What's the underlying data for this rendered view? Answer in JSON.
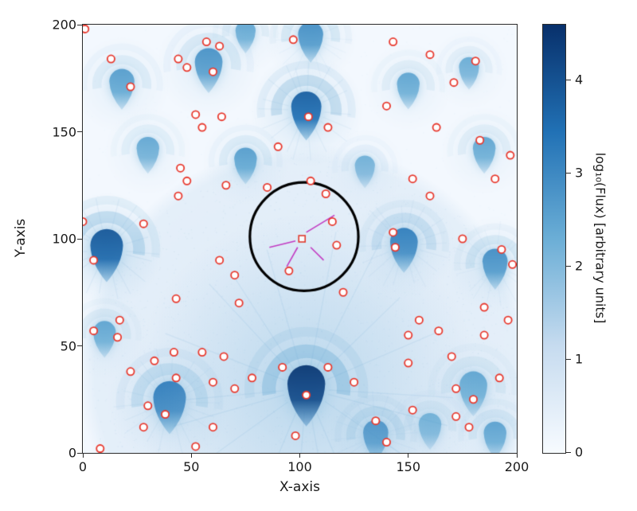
{
  "chart_data": {
    "type": "heatmap",
    "title": "",
    "xlabel": "X-axis",
    "ylabel": "Y-axis",
    "xlim": [
      0,
      200
    ],
    "ylim": [
      0,
      200
    ],
    "x_ticks": [
      0,
      50,
      100,
      150,
      200
    ],
    "y_ticks": [
      0,
      50,
      100,
      150,
      200
    ],
    "grid": false,
    "colorbar": {
      "label": "log₁₀(Flux) [arbitrary units]",
      "vmin": 0,
      "vmax": 4.6,
      "ticks": [
        0,
        1,
        2,
        3,
        4
      ],
      "colormap": "Blues",
      "colormap_stops": [
        "#f7fbff",
        "#c6dbef",
        "#6baed6",
        "#2171b5",
        "#08306b"
      ]
    },
    "big_halo": {
      "x": 103,
      "y": 38,
      "r": 105
    },
    "sources": [
      {
        "x": 103,
        "y": 30,
        "i": 1.0,
        "r": 15,
        "halo": 80
      },
      {
        "x": 103,
        "y": 160,
        "i": 0.75,
        "r": 12,
        "halo": 26
      },
      {
        "x": 11,
        "y": 95,
        "i": 0.8,
        "r": 13,
        "halo": 26
      },
      {
        "x": 148,
        "y": 97,
        "i": 0.55,
        "r": 11,
        "halo": 24
      },
      {
        "x": 40,
        "y": 24,
        "i": 0.6,
        "r": 13,
        "halo": 28
      },
      {
        "x": 190,
        "y": 88,
        "i": 0.45,
        "r": 10,
        "halo": 22
      },
      {
        "x": 58,
        "y": 181,
        "i": 0.42,
        "r": 11,
        "halo": 24
      },
      {
        "x": 18,
        "y": 172,
        "i": 0.35,
        "r": 10,
        "halo": 22
      },
      {
        "x": 105,
        "y": 194,
        "i": 0.45,
        "r": 10,
        "halo": 21
      },
      {
        "x": 75,
        "y": 136,
        "i": 0.35,
        "r": 9,
        "halo": 20
      },
      {
        "x": 30,
        "y": 141,
        "i": 0.28,
        "r": 9,
        "halo": 20
      },
      {
        "x": 185,
        "y": 141,
        "i": 0.3,
        "r": 9,
        "halo": 20
      },
      {
        "x": 150,
        "y": 171,
        "i": 0.3,
        "r": 9,
        "halo": 20
      },
      {
        "x": 178,
        "y": 179,
        "i": 0.25,
        "r": 8,
        "halo": 18
      },
      {
        "x": 135,
        "y": 8,
        "i": 0.5,
        "r": 10,
        "halo": 22
      },
      {
        "x": 180,
        "y": 30,
        "i": 0.3,
        "r": 11,
        "halo": 24
      },
      {
        "x": 10,
        "y": 55,
        "i": 0.3,
        "r": 9,
        "halo": 20
      },
      {
        "x": 75,
        "y": 196,
        "i": 0.3,
        "r": 8,
        "halo": 18
      },
      {
        "x": 190,
        "y": 8,
        "i": 0.32,
        "r": 9,
        "halo": 20
      },
      {
        "x": 160,
        "y": 12,
        "i": 0.25,
        "r": 9,
        "halo": 20
      },
      {
        "x": 130,
        "y": 133,
        "i": 0.22,
        "r": 8,
        "halo": 18
      }
    ],
    "aperture_circle": {
      "x": 102,
      "y": 101,
      "r": 25,
      "color": "#000000",
      "linewidth": 3.2
    },
    "crosshair": {
      "color": "#c23bc2",
      "segments": [
        [
          103,
          103,
          116,
          111
        ],
        [
          86,
          96,
          98,
          99
        ],
        [
          99,
          96,
          94,
          87
        ],
        [
          105,
          96,
          111,
          90
        ]
      ]
    },
    "center_marker": {
      "x": 101,
      "y": 100,
      "shape": "square",
      "color": "#e03a2e"
    },
    "detections": {
      "marker": "circle",
      "face": "#ffffff",
      "edge": "#e8392e",
      "size": 4.6,
      "points": [
        [
          1,
          198
        ],
        [
          13,
          184
        ],
        [
          44,
          184
        ],
        [
          48,
          180
        ],
        [
          57,
          192
        ],
        [
          63,
          190
        ],
        [
          97,
          193
        ],
        [
          143,
          192
        ],
        [
          160,
          186
        ],
        [
          181,
          183
        ],
        [
          22,
          171
        ],
        [
          60,
          178
        ],
        [
          52,
          158
        ],
        [
          55,
          152
        ],
        [
          64,
          157
        ],
        [
          104,
          157
        ],
        [
          113,
          152
        ],
        [
          140,
          162
        ],
        [
          163,
          152
        ],
        [
          171,
          173
        ],
        [
          183,
          146
        ],
        [
          197,
          139
        ],
        [
          190,
          128
        ],
        [
          152,
          128
        ],
        [
          160,
          120
        ],
        [
          105,
          127
        ],
        [
          112,
          121
        ],
        [
          90,
          143
        ],
        [
          45,
          133
        ],
        [
          48,
          127
        ],
        [
          44,
          120
        ],
        [
          66,
          125
        ],
        [
          85,
          124
        ],
        [
          0,
          108
        ],
        [
          28,
          107
        ],
        [
          5,
          90
        ],
        [
          63,
          90
        ],
        [
          70,
          83
        ],
        [
          115,
          108
        ],
        [
          117,
          97
        ],
        [
          143,
          103
        ],
        [
          144,
          96
        ],
        [
          175,
          100
        ],
        [
          193,
          95
        ],
        [
          198,
          88
        ],
        [
          155,
          62
        ],
        [
          150,
          55
        ],
        [
          164,
          57
        ],
        [
          185,
          68
        ],
        [
          170,
          45
        ],
        [
          17,
          62
        ],
        [
          5,
          57
        ],
        [
          16,
          54
        ],
        [
          43,
          72
        ],
        [
          72,
          70
        ],
        [
          95,
          85
        ],
        [
          120,
          75
        ],
        [
          22,
          38
        ],
        [
          33,
          43
        ],
        [
          42,
          47
        ],
        [
          55,
          47
        ],
        [
          43,
          35
        ],
        [
          60,
          33
        ],
        [
          70,
          30
        ],
        [
          78,
          35
        ],
        [
          30,
          22
        ],
        [
          38,
          18
        ],
        [
          28,
          12
        ],
        [
          52,
          3
        ],
        [
          92,
          40
        ],
        [
          103,
          27
        ],
        [
          113,
          40
        ],
        [
          125,
          33
        ],
        [
          140,
          5
        ],
        [
          152,
          20
        ],
        [
          172,
          30
        ],
        [
          180,
          25
        ],
        [
          172,
          17
        ],
        [
          178,
          12
        ],
        [
          192,
          35
        ],
        [
          150,
          42
        ],
        [
          135,
          15
        ],
        [
          65,
          45
        ],
        [
          8,
          2
        ],
        [
          98,
          8
        ],
        [
          185,
          55
        ],
        [
          196,
          62
        ],
        [
          60,
          12
        ]
      ]
    }
  }
}
